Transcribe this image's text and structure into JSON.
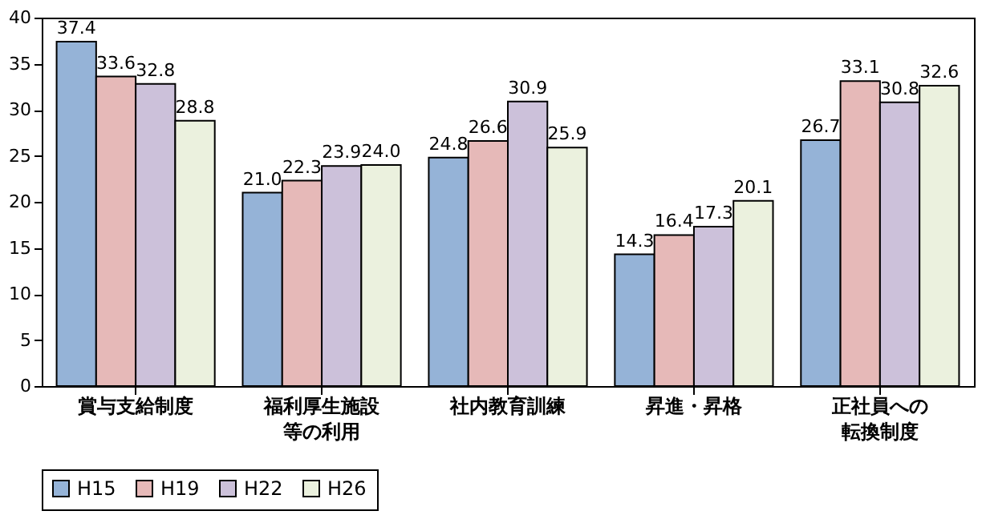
{
  "chart_data": {
    "type": "bar",
    "categories": [
      "賞与支給制度",
      "福利厚生施設等の利用",
      "社内教育訓練",
      "昇進・昇格",
      "正社員への転換制度"
    ],
    "series": [
      {
        "name": "H15",
        "color": "#95b3d7",
        "values": [
          37.4,
          21,
          24.8,
          14.3,
          26.7
        ],
        "value_labels": [
          "37.4",
          "21.0",
          "24.8",
          "14.3",
          "26.7"
        ]
      },
      {
        "name": "H19",
        "color": "#e6b9b8",
        "values": [
          33.6,
          22.3,
          26.6,
          16.4,
          33.1
        ],
        "value_labels": [
          "33.6",
          "22.3",
          "26.6",
          "16.4",
          "33.1"
        ]
      },
      {
        "name": "H22",
        "color": "#ccc1da",
        "values": [
          32.8,
          23.9,
          30.9,
          17.3,
          30.8
        ],
        "value_labels": [
          "32.8",
          "23.9",
          "30.9",
          "17.3",
          "30.8"
        ]
      },
      {
        "name": "H26",
        "color": "#ebf1de",
        "values": [
          28.8,
          24,
          25.9,
          20.1,
          32.6
        ],
        "value_labels": [
          "28.8",
          "24.0",
          "25.9",
          "20.1",
          "32.6"
        ]
      }
    ],
    "ylim": [
      0,
      40
    ],
    "yticks": [
      0,
      5,
      10,
      15,
      20,
      25,
      30,
      35,
      40
    ],
    "grid": false,
    "legend": "bottom"
  }
}
